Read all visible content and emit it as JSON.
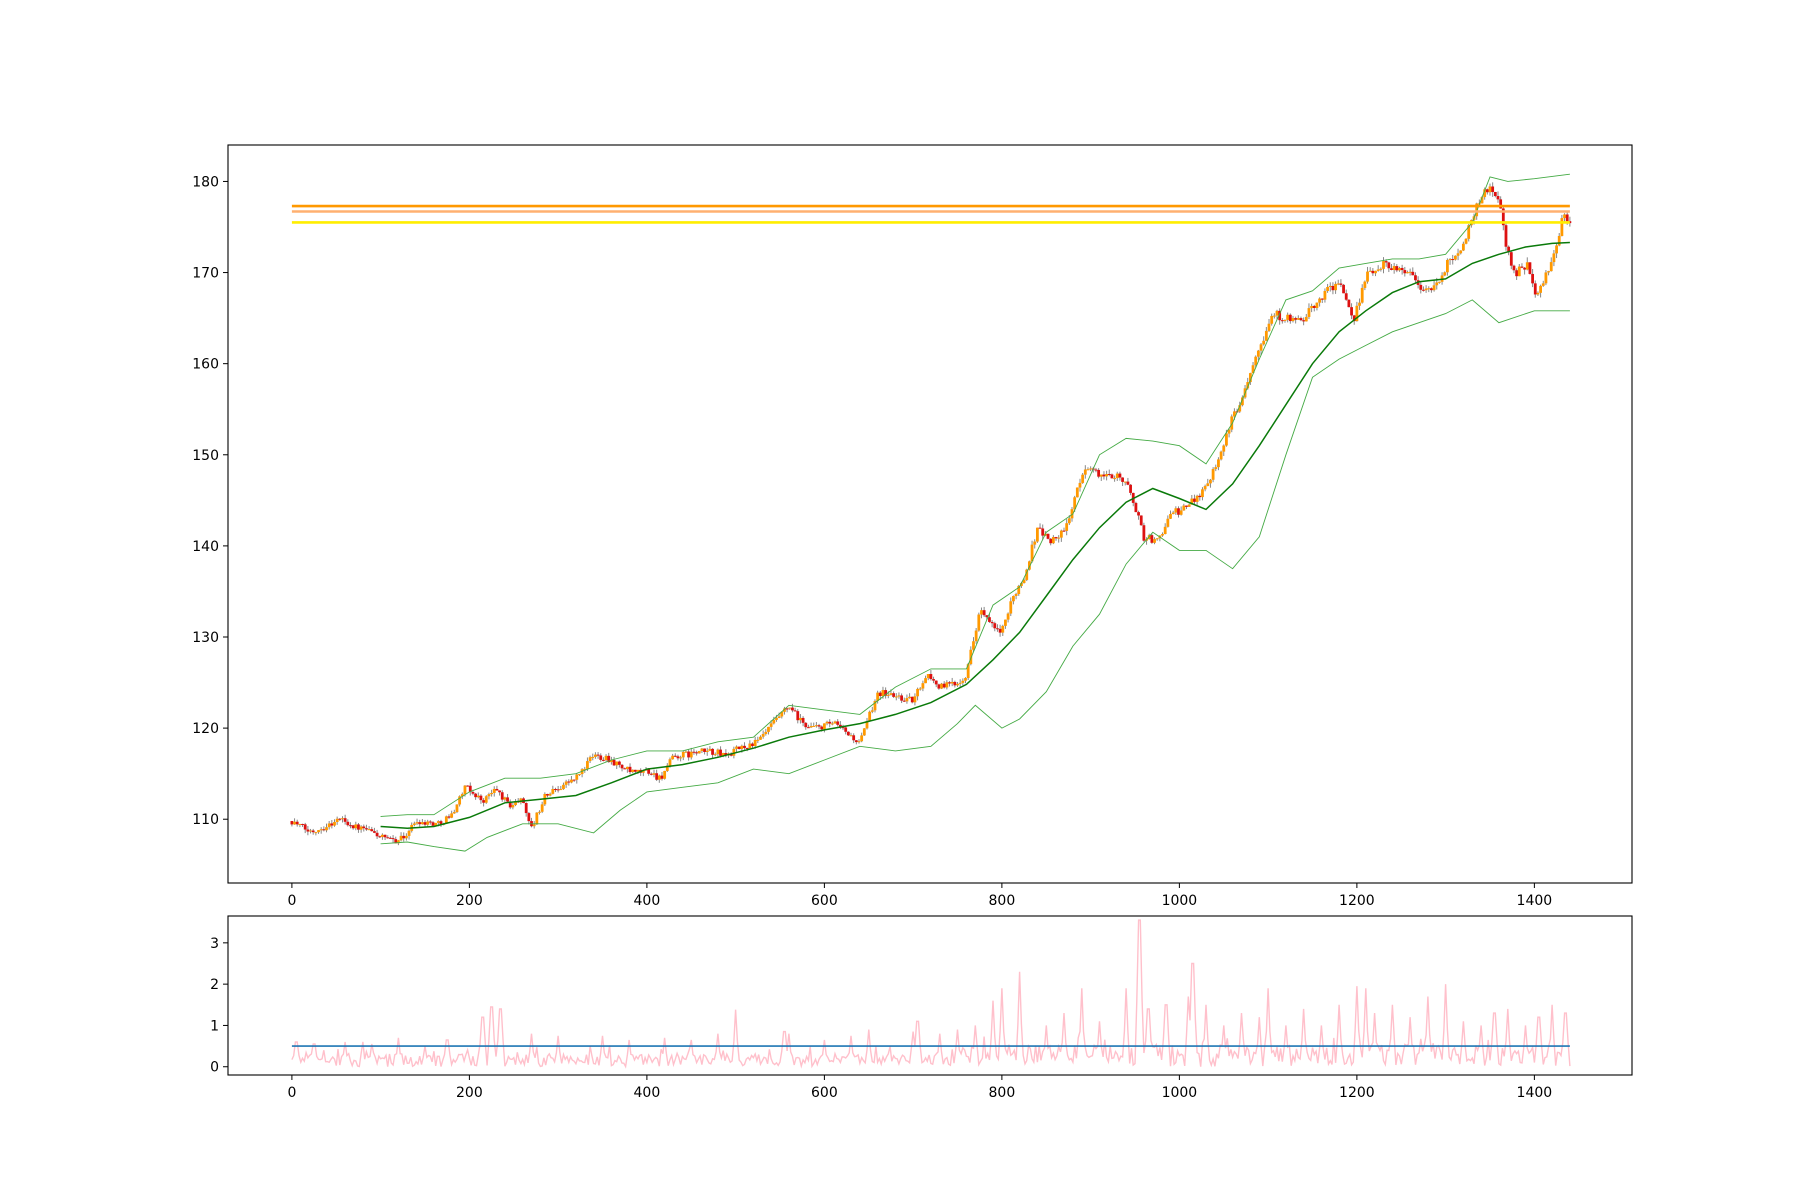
{
  "chart_data": [
    {
      "panel": "price",
      "type": "line",
      "description_series": "candlestick price with moving average and bollinger bands",
      "title": "",
      "xlabel": "",
      "ylabel": "",
      "xlim": [
        -72,
        1510
      ],
      "ylim": [
        103,
        184
      ],
      "xticks": [
        0,
        200,
        400,
        600,
        800,
        1000,
        1200,
        1400
      ],
      "xtick_labels": [
        "0",
        "200",
        "400",
        "600",
        "800",
        "1000",
        "1200",
        "1400"
      ],
      "yticks": [
        110,
        120,
        130,
        140,
        150,
        160,
        170,
        180
      ],
      "ytick_labels": [
        "110",
        "120",
        "130",
        "140",
        "150",
        "160",
        "170",
        "180"
      ],
      "grid": false,
      "colors": {
        "up_candle": "#ff9900",
        "down_candle": "#dd1111",
        "wick": "#888888",
        "moving_average": "#0a7a0a",
        "bands": "#44aa44",
        "level_1": "#ff9900",
        "level_2": "#ffb070",
        "level_3": "#ffee00"
      },
      "horizontal_levels": [
        {
          "y": 177.3,
          "color": "#ff9900",
          "x_start": 0,
          "x_end": 1440
        },
        {
          "y": 176.7,
          "color": "#ffb070",
          "x_start": 0,
          "x_end": 1440
        },
        {
          "y": 175.5,
          "color": "#ffee00",
          "x_start": 0,
          "x_end": 1440
        }
      ],
      "price_path": [
        [
          0,
          109.8
        ],
        [
          20,
          108.6
        ],
        [
          40,
          109.3
        ],
        [
          55,
          110.1
        ],
        [
          70,
          109.2
        ],
        [
          90,
          108.6
        ],
        [
          110,
          107.6
        ],
        [
          125,
          107.9
        ],
        [
          140,
          109.8
        ],
        [
          165,
          109.5
        ],
        [
          180,
          110.5
        ],
        [
          195,
          113.5
        ],
        [
          205,
          112.8
        ],
        [
          215,
          112.0
        ],
        [
          230,
          113.3
        ],
        [
          245,
          111.5
        ],
        [
          260,
          112.2
        ],
        [
          270,
          109.0
        ],
        [
          285,
          112.5
        ],
        [
          300,
          113.5
        ],
        [
          320,
          114.5
        ],
        [
          340,
          117.0
        ],
        [
          355,
          116.8
        ],
        [
          370,
          115.8
        ],
        [
          385,
          115.0
        ],
        [
          400,
          115.3
        ],
        [
          415,
          114.5
        ],
        [
          430,
          116.8
        ],
        [
          450,
          117.2
        ],
        [
          470,
          117.5
        ],
        [
          490,
          117.0
        ],
        [
          505,
          117.8
        ],
        [
          525,
          118.5
        ],
        [
          545,
          120.8
        ],
        [
          560,
          122.3
        ],
        [
          575,
          120.5
        ],
        [
          590,
          120.0
        ],
        [
          610,
          120.5
        ],
        [
          625,
          119.5
        ],
        [
          640,
          118.3
        ],
        [
          660,
          124.0
        ],
        [
          680,
          123.5
        ],
        [
          700,
          123.0
        ],
        [
          715,
          126.0
        ],
        [
          730,
          124.5
        ],
        [
          750,
          125.0
        ],
        [
          760,
          126.0
        ],
        [
          775,
          133.0
        ],
        [
          790,
          131.0
        ],
        [
          800,
          130.5
        ],
        [
          815,
          135.0
        ],
        [
          825,
          136.5
        ],
        [
          840,
          142.0
        ],
        [
          855,
          140.5
        ],
        [
          870,
          141.5
        ],
        [
          880,
          144.5
        ],
        [
          895,
          149.0
        ],
        [
          905,
          148.0
        ],
        [
          920,
          147.5
        ],
        [
          930,
          148.0
        ],
        [
          945,
          146.0
        ],
        [
          960,
          141.0
        ],
        [
          975,
          140.5
        ],
        [
          990,
          143.5
        ],
        [
          1005,
          144.0
        ],
        [
          1020,
          145.5
        ],
        [
          1030,
          146.5
        ],
        [
          1045,
          150.0
        ],
        [
          1060,
          154.0
        ],
        [
          1075,
          157.5
        ],
        [
          1085,
          161.0
        ],
        [
          1095,
          163.0
        ],
        [
          1105,
          165.5
        ],
        [
          1120,
          165.0
        ],
        [
          1135,
          164.5
        ],
        [
          1150,
          166.0
        ],
        [
          1165,
          168.0
        ],
        [
          1180,
          169.0
        ],
        [
          1195,
          164.5
        ],
        [
          1210,
          169.5
        ],
        [
          1230,
          171.0
        ],
        [
          1245,
          170.5
        ],
        [
          1260,
          170.0
        ],
        [
          1275,
          168.0
        ],
        [
          1290,
          168.5
        ],
        [
          1305,
          171.5
        ],
        [
          1320,
          173.0
        ],
        [
          1335,
          177.5
        ],
        [
          1350,
          179.5
        ],
        [
          1360,
          178.0
        ],
        [
          1370,
          172.0
        ],
        [
          1380,
          170.0
        ],
        [
          1392,
          171.0
        ],
        [
          1402,
          167.0
        ],
        [
          1415,
          170.0
        ],
        [
          1425,
          173.0
        ],
        [
          1432,
          176.0
        ],
        [
          1440,
          175.5
        ]
      ],
      "moving_average": [
        [
          100,
          109.2
        ],
        [
          130,
          109.0
        ],
        [
          160,
          109.2
        ],
        [
          200,
          110.2
        ],
        [
          240,
          111.8
        ],
        [
          280,
          112.2
        ],
        [
          320,
          112.6
        ],
        [
          360,
          114.0
        ],
        [
          400,
          115.5
        ],
        [
          440,
          116.0
        ],
        [
          480,
          116.8
        ],
        [
          520,
          117.8
        ],
        [
          560,
          119.0
        ],
        [
          600,
          119.8
        ],
        [
          640,
          120.5
        ],
        [
          680,
          121.5
        ],
        [
          720,
          122.8
        ],
        [
          760,
          124.8
        ],
        [
          790,
          127.5
        ],
        [
          820,
          130.5
        ],
        [
          850,
          134.5
        ],
        [
          880,
          138.5
        ],
        [
          910,
          142.0
        ],
        [
          940,
          144.8
        ],
        [
          970,
          146.3
        ],
        [
          1000,
          145.2
        ],
        [
          1030,
          144.0
        ],
        [
          1060,
          146.8
        ],
        [
          1090,
          151.0
        ],
        [
          1120,
          155.5
        ],
        [
          1150,
          160.0
        ],
        [
          1180,
          163.5
        ],
        [
          1210,
          165.8
        ],
        [
          1240,
          167.8
        ],
        [
          1270,
          169.0
        ],
        [
          1300,
          169.3
        ],
        [
          1330,
          171.0
        ],
        [
          1360,
          172.0
        ],
        [
          1390,
          172.8
        ],
        [
          1420,
          173.2
        ],
        [
          1440,
          173.3
        ]
      ],
      "upper_band": [
        [
          100,
          110.3
        ],
        [
          130,
          110.5
        ],
        [
          160,
          110.5
        ],
        [
          200,
          113.0
        ],
        [
          240,
          114.5
        ],
        [
          280,
          114.5
        ],
        [
          320,
          115.0
        ],
        [
          360,
          116.5
        ],
        [
          400,
          117.5
        ],
        [
          440,
          117.5
        ],
        [
          480,
          118.5
        ],
        [
          520,
          119.0
        ],
        [
          560,
          122.5
        ],
        [
          600,
          122.0
        ],
        [
          640,
          121.5
        ],
        [
          680,
          124.5
        ],
        [
          720,
          126.5
        ],
        [
          760,
          126.5
        ],
        [
          790,
          133.5
        ],
        [
          820,
          135.5
        ],
        [
          850,
          141.5
        ],
        [
          880,
          143.5
        ],
        [
          910,
          150.0
        ],
        [
          940,
          151.8
        ],
        [
          970,
          151.5
        ],
        [
          1000,
          151.0
        ],
        [
          1030,
          149.0
        ],
        [
          1060,
          153.5
        ],
        [
          1090,
          160.5
        ],
        [
          1120,
          167.0
        ],
        [
          1150,
          168.0
        ],
        [
          1180,
          170.5
        ],
        [
          1210,
          171.0
        ],
        [
          1240,
          171.5
        ],
        [
          1270,
          171.5
        ],
        [
          1300,
          172.0
        ],
        [
          1330,
          175.5
        ],
        [
          1350,
          180.5
        ],
        [
          1370,
          180.0
        ],
        [
          1400,
          180.3
        ],
        [
          1440,
          180.8
        ]
      ],
      "lower_band": [
        [
          100,
          107.3
        ],
        [
          130,
          107.5
        ],
        [
          160,
          107.0
        ],
        [
          195,
          106.5
        ],
        [
          220,
          108.0
        ],
        [
          260,
          109.5
        ],
        [
          300,
          109.5
        ],
        [
          340,
          108.5
        ],
        [
          370,
          111.0
        ],
        [
          400,
          113.0
        ],
        [
          440,
          113.5
        ],
        [
          480,
          114.0
        ],
        [
          520,
          115.5
        ],
        [
          560,
          115.0
        ],
        [
          600,
          116.5
        ],
        [
          640,
          118.0
        ],
        [
          680,
          117.5
        ],
        [
          720,
          118.0
        ],
        [
          750,
          120.5
        ],
        [
          770,
          122.5
        ],
        [
          800,
          120.0
        ],
        [
          820,
          121.0
        ],
        [
          850,
          124.0
        ],
        [
          880,
          129.0
        ],
        [
          910,
          132.5
        ],
        [
          940,
          138.0
        ],
        [
          970,
          141.5
        ],
        [
          1000,
          139.5
        ],
        [
          1030,
          139.5
        ],
        [
          1060,
          137.5
        ],
        [
          1090,
          141.0
        ],
        [
          1120,
          150.0
        ],
        [
          1150,
          158.5
        ],
        [
          1180,
          160.5
        ],
        [
          1210,
          162.0
        ],
        [
          1240,
          163.5
        ],
        [
          1270,
          164.5
        ],
        [
          1300,
          165.5
        ],
        [
          1330,
          167.0
        ],
        [
          1360,
          164.5
        ],
        [
          1400,
          165.8
        ],
        [
          1440,
          165.8
        ]
      ]
    },
    {
      "panel": "indicator",
      "type": "line",
      "title": "",
      "xlabel": "",
      "ylabel": "",
      "xlim": [
        -72,
        1510
      ],
      "ylim": [
        -0.2,
        3.65
      ],
      "xticks": [
        0,
        200,
        400,
        600,
        800,
        1000,
        1200,
        1400
      ],
      "xtick_labels": [
        "0",
        "200",
        "400",
        "600",
        "800",
        "1000",
        "1200",
        "1400"
      ],
      "yticks": [
        0,
        1,
        2,
        3
      ],
      "ytick_labels": [
        "0",
        "1",
        "2",
        "3"
      ],
      "grid": false,
      "colors": {
        "indicator": "#ffc0cb",
        "threshold": "#1f77b4"
      },
      "threshold": 0.5,
      "spikes": [
        [
          5,
          0.6
        ],
        [
          25,
          0.55
        ],
        [
          60,
          0.6
        ],
        [
          90,
          0.55
        ],
        [
          120,
          0.7
        ],
        [
          150,
          0.5
        ],
        [
          175,
          0.65
        ],
        [
          215,
          1.2
        ],
        [
          225,
          1.45
        ],
        [
          235,
          1.4
        ],
        [
          270,
          0.8
        ],
        [
          300,
          0.75
        ],
        [
          350,
          0.75
        ],
        [
          380,
          0.65
        ],
        [
          420,
          0.7
        ],
        [
          450,
          0.65
        ],
        [
          480,
          0.8
        ],
        [
          500,
          1.38
        ],
        [
          555,
          0.85
        ],
        [
          560,
          0.8
        ],
        [
          600,
          0.65
        ],
        [
          630,
          0.75
        ],
        [
          650,
          0.9
        ],
        [
          700,
          0.85
        ],
        [
          705,
          1.1
        ],
        [
          730,
          0.8
        ],
        [
          750,
          0.9
        ],
        [
          770,
          1.0
        ],
        [
          790,
          1.6
        ],
        [
          800,
          1.9
        ],
        [
          820,
          2.3
        ],
        [
          850,
          1.0
        ],
        [
          870,
          1.3
        ],
        [
          890,
          1.9
        ],
        [
          910,
          1.1
        ],
        [
          940,
          1.9
        ],
        [
          955,
          3.55
        ],
        [
          965,
          1.4
        ],
        [
          985,
          1.5
        ],
        [
          1010,
          1.7
        ],
        [
          1015,
          2.5
        ],
        [
          1030,
          1.5
        ],
        [
          1050,
          1.0
        ],
        [
          1070,
          1.3
        ],
        [
          1090,
          1.2
        ],
        [
          1100,
          1.9
        ],
        [
          1120,
          1.0
        ],
        [
          1140,
          1.4
        ],
        [
          1160,
          1.0
        ],
        [
          1180,
          1.5
        ],
        [
          1200,
          1.95
        ],
        [
          1210,
          1.9
        ],
        [
          1220,
          1.3
        ],
        [
          1240,
          1.5
        ],
        [
          1260,
          1.2
        ],
        [
          1280,
          1.7
        ],
        [
          1300,
          2.0
        ],
        [
          1320,
          1.1
        ],
        [
          1340,
          1.0
        ],
        [
          1355,
          1.3
        ],
        [
          1370,
          1.4
        ],
        [
          1390,
          1.0
        ],
        [
          1405,
          1.2
        ],
        [
          1420,
          1.5
        ],
        [
          1435,
          1.3
        ]
      ]
    }
  ]
}
